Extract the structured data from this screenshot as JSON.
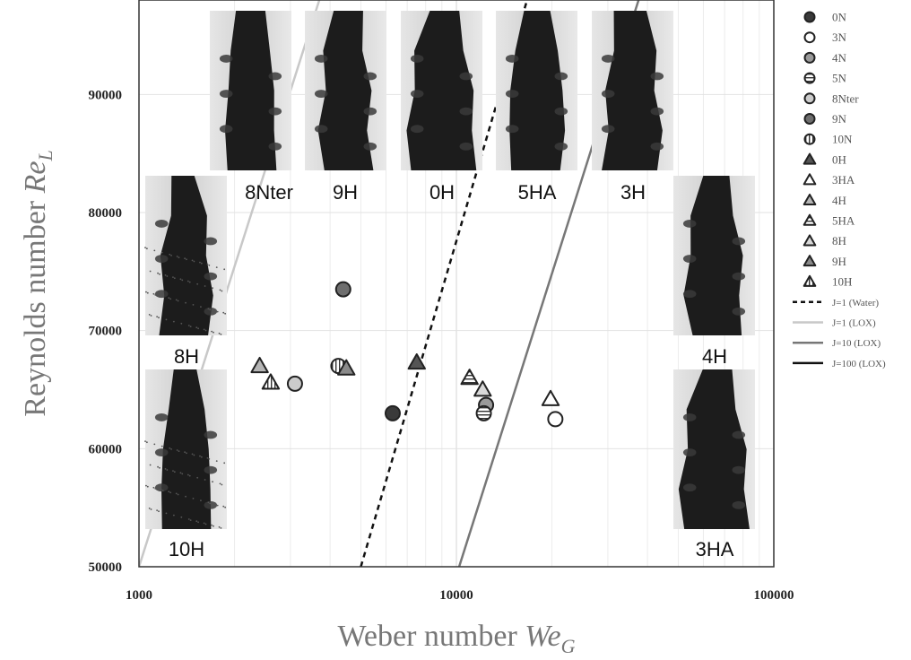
{
  "chart_data": {
    "type": "scatter",
    "xscale": "log",
    "xlim": [
      1000,
      100000
    ],
    "ylim": [
      50000,
      98000
    ],
    "grid": true,
    "xlabel": {
      "main": "Weber number ",
      "symbol": "We",
      "sub": "G"
    },
    "ylabel": {
      "main": "Reynolds number ",
      "symbol": "Re",
      "sub": "L"
    },
    "x_ticks": [
      {
        "value": 1000,
        "label": "1000"
      },
      {
        "value": 10000,
        "label": "10000"
      },
      {
        "value": 100000,
        "label": "100000"
      }
    ],
    "y_ticks": [
      {
        "value": 50000,
        "label": "50000"
      },
      {
        "value": 60000,
        "label": "60000"
      },
      {
        "value": 70000,
        "label": "70000"
      },
      {
        "value": 80000,
        "label": "80000"
      },
      {
        "value": 90000,
        "label": "90000"
      }
    ],
    "legend_position": "right",
    "series": [
      {
        "name": "0N",
        "marker": "circle",
        "fill": "#3a3a3a",
        "points": [
          [
            6300,
            63000
          ]
        ]
      },
      {
        "name": "3N",
        "marker": "circle",
        "fill": "#ffffff",
        "points": [
          [
            20500,
            62500
          ]
        ]
      },
      {
        "name": "4N",
        "marker": "circle",
        "fill": "#9a9a9a",
        "points": [
          [
            12400,
            63700
          ]
        ]
      },
      {
        "name": "5N",
        "marker": "circle-hstripe",
        "fill": "#ffffff",
        "points": [
          [
            12200,
            63000
          ]
        ]
      },
      {
        "name": "8Nter",
        "marker": "circle",
        "fill": "#cccccc",
        "points": [
          [
            3100,
            65500
          ]
        ]
      },
      {
        "name": "9N",
        "marker": "circle",
        "fill": "#6e6e6e",
        "points": [
          [
            4400,
            73500
          ]
        ]
      },
      {
        "name": "10N",
        "marker": "circle-vstripe",
        "fill": "#ffffff",
        "points": [
          [
            4250,
            67000
          ]
        ]
      },
      {
        "name": "0H",
        "marker": "triangle",
        "fill": "#555555",
        "points": [
          [
            7500,
            67300
          ]
        ]
      },
      {
        "name": "3HA",
        "marker": "triangle",
        "fill": "#ffffff",
        "points": [
          [
            19800,
            64200
          ]
        ]
      },
      {
        "name": "4H",
        "marker": "triangle",
        "fill": "#b5b5b5",
        "points": [
          [
            2400,
            67000
          ]
        ]
      },
      {
        "name": "5HA",
        "marker": "triangle-hstripe",
        "fill": "#ffffff",
        "points": [
          [
            11000,
            66000
          ]
        ]
      },
      {
        "name": "8H",
        "marker": "triangle",
        "fill": "#d8d8d8",
        "points": [
          [
            12100,
            65000
          ]
        ]
      },
      {
        "name": "9H",
        "marker": "triangle",
        "fill": "#8a8a8a",
        "points": [
          [
            4500,
            66800
          ]
        ]
      },
      {
        "name": "10H",
        "marker": "triangle-vstripe",
        "fill": "#ffffff",
        "points": [
          [
            2600,
            65600
          ]
        ]
      }
    ],
    "lines": [
      {
        "name": "J=1 (Water)",
        "stroke": "#111111",
        "dash": "6,5",
        "points": [
          [
            5000,
            50000
          ],
          [
            16700,
            98000
          ]
        ]
      },
      {
        "name": "J=1 (LOX)",
        "stroke": "#c8c8c8",
        "dash": "",
        "points": [
          [
            1000,
            50000
          ],
          [
            3700,
            98000
          ]
        ]
      },
      {
        "name": "J=10 (LOX)",
        "stroke": "#777777",
        "dash": "",
        "points": [
          [
            10200,
            50000
          ],
          [
            37500,
            98000
          ]
        ]
      },
      {
        "name": "J=100 (LOX)",
        "stroke": "#111111",
        "dash": "",
        "points": []
      }
    ],
    "images": [
      {
        "label": "8Nter",
        "style": "wide"
      },
      {
        "label": "9H",
        "style": "wide"
      },
      {
        "label": "0H",
        "style": "bushy"
      },
      {
        "label": "5HA",
        "style": "ligament"
      },
      {
        "label": "3H",
        "style": "dense"
      },
      {
        "label": "8H",
        "style": "spray"
      },
      {
        "label": "10H",
        "style": "spray"
      },
      {
        "label": "4H",
        "style": "ligament"
      },
      {
        "label": "3HA",
        "style": "bushy"
      }
    ]
  }
}
